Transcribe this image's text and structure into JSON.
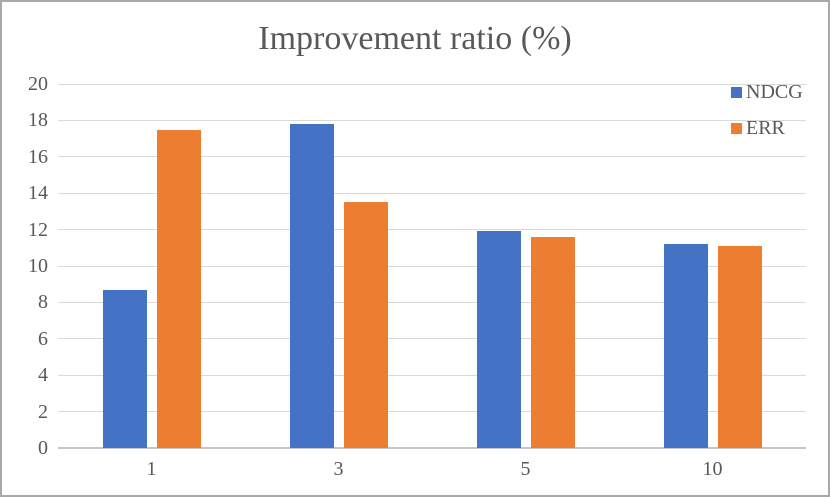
{
  "chart_data": {
    "type": "bar",
    "title": "Improvement ratio (%)",
    "categories": [
      "1",
      "3",
      "5",
      "10"
    ],
    "series": [
      {
        "name": "NDCG",
        "color": "#4472C4",
        "values": [
          8.7,
          17.8,
          11.9,
          11.2
        ]
      },
      {
        "name": "ERR",
        "color": "#ED7D31",
        "values": [
          17.5,
          13.5,
          11.6,
          11.1
        ]
      }
    ],
    "xlabel": "",
    "ylabel": "",
    "ylim": [
      0,
      20
    ],
    "yticks": [
      0,
      2,
      4,
      6,
      8,
      10,
      12,
      14,
      16,
      18,
      20
    ],
    "grid": "horizontal",
    "legend_position": "top-right"
  },
  "colors": {
    "ndcg_blue": "#4472C4",
    "err_orange": "#ED7D31",
    "text": "#595959",
    "gridline": "#D9D9D9",
    "axis_line": "#C6C6C6",
    "border": "#A9A9A9",
    "background": "#FFFFFF"
  }
}
